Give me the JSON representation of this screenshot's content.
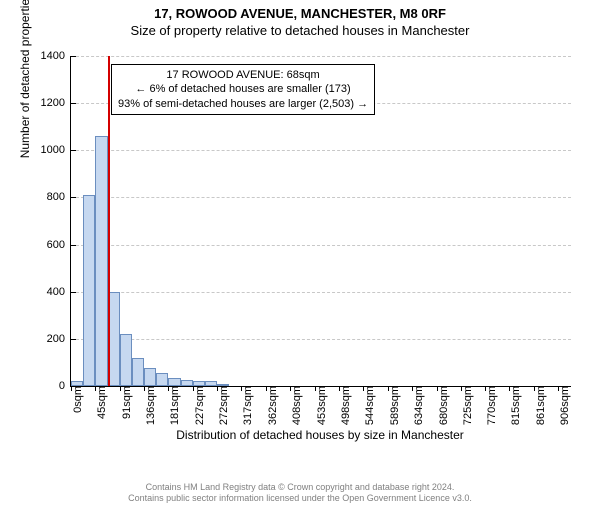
{
  "title_line1": "17, ROWOOD AVENUE, MANCHESTER, M8 0RF",
  "title_line2": "Size of property relative to detached houses in Manchester",
  "ylabel": "Number of detached properties",
  "xlabel": "Distribution of detached houses by size in Manchester",
  "annotation": {
    "line1": "17 ROWOOD AVENUE: 68sqm",
    "line2": "← 6% of detached houses are smaller (173)",
    "line3": "93% of semi-detached houses are larger (2,503) →"
  },
  "footer_line1": "Contains HM Land Registry data © Crown copyright and database right 2024.",
  "footer_line2": "Contains public sector information licensed under the Open Government Licence v3.0.",
  "chart": {
    "type": "histogram",
    "ylim_max": 1400,
    "ytick_step": 200,
    "bar_fill": "#c6d8f0",
    "bar_stroke": "#6b8ebf",
    "grid_color": "#c8c8c8",
    "marker_color": "#d40000",
    "marker_x_value": 68,
    "x_max": 930,
    "xticks": [
      0,
      45,
      91,
      136,
      181,
      227,
      272,
      317,
      362,
      408,
      453,
      498,
      544,
      589,
      634,
      680,
      725,
      770,
      815,
      861,
      906
    ],
    "xtick_labels": [
      "0sqm",
      "45sqm",
      "91sqm",
      "136sqm",
      "181sqm",
      "227sqm",
      "272sqm",
      "317sqm",
      "362sqm",
      "408sqm",
      "453sqm",
      "498sqm",
      "544sqm",
      "589sqm",
      "634sqm",
      "680sqm",
      "725sqm",
      "770sqm",
      "815sqm",
      "861sqm",
      "906sqm"
    ],
    "bar_bin_width": 22.65,
    "values": [
      20,
      810,
      1060,
      400,
      220,
      120,
      75,
      55,
      35,
      25,
      20,
      20,
      10,
      0,
      0,
      0,
      0,
      0,
      0,
      0,
      0,
      0,
      0,
      0,
      0,
      0,
      0,
      0,
      0,
      0,
      0,
      0,
      0,
      0,
      0,
      0,
      0,
      0,
      0,
      0,
      0
    ]
  }
}
